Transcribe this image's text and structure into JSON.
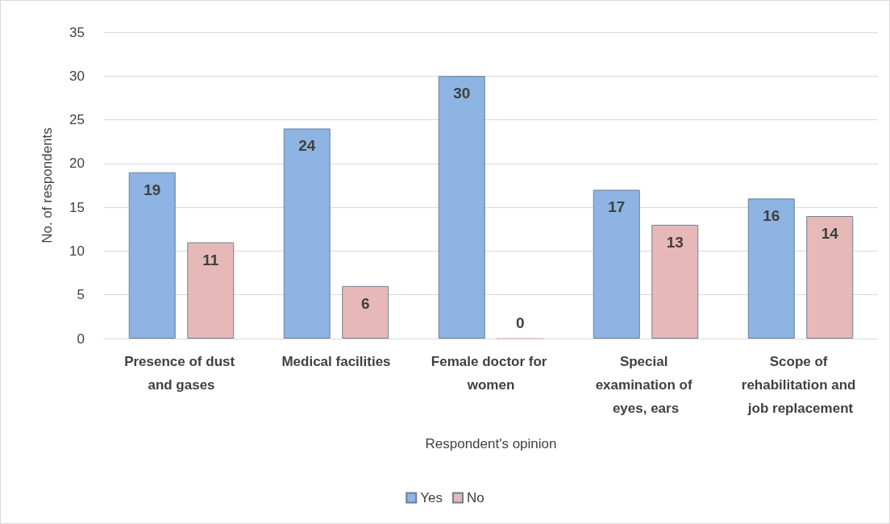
{
  "chart_data": {
    "type": "bar",
    "xlabel": "Respondent's opinion",
    "ylabel": "No. of respondents",
    "categories": [
      "Presence of dust and gases",
      "Medical facilities",
      "Female doctor for women",
      "Special examination of eyes, ears",
      "Scope of rehabilitation and job replacement"
    ],
    "series": [
      {
        "name": "Yes",
        "color": "#8db4e2",
        "values": [
          19,
          24,
          30,
          17,
          16
        ]
      },
      {
        "name": "No",
        "color": "#e6b9b8",
        "values": [
          11,
          6,
          0,
          13,
          14
        ]
      }
    ],
    "ylim": [
      0,
      35
    ],
    "yticks": [
      0,
      5,
      10,
      15,
      20,
      25,
      30,
      35
    ],
    "grid": "y",
    "legend": "bottom",
    "data_labels": true
  }
}
